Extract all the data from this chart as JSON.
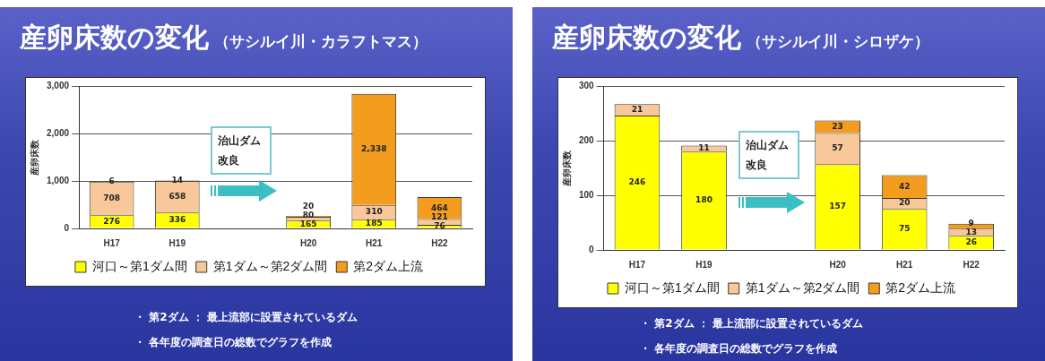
{
  "chart_data": [
    {
      "type": "bar",
      "title": "産卵床数の変化",
      "subtitle": "（サシルイ川・カラフトマス）",
      "ylabel": "産卵床数",
      "categories": [
        "H17",
        "H19",
        null,
        "H20",
        "H21",
        "H22"
      ],
      "stacked": true,
      "series": [
        {
          "name": "河口～第1ダム間",
          "color": "#ffff00",
          "values": [
            276,
            336,
            null,
            165,
            185,
            76
          ],
          "value_labels": [
            "276",
            "336",
            null,
            "165",
            "185",
            "76"
          ]
        },
        {
          "name": "第1ダム～第2ダム間",
          "color": "#f8c79a",
          "values": [
            708,
            658,
            null,
            80,
            310,
            121
          ],
          "value_labels": [
            "708",
            "658",
            null,
            "80",
            "310",
            "121"
          ]
        },
        {
          "name": "第2ダム上流",
          "color": "#f39c1e",
          "values": [
            6,
            14,
            null,
            20,
            2338,
            464
          ],
          "value_labels": [
            "6",
            "14",
            null,
            "20",
            "2,338",
            "464"
          ]
        }
      ],
      "ylim": [
        0,
        3000
      ],
      "yticks": [
        0,
        {
          "value": 1000,
          "label": "1,000"
        },
        {
          "value": 2000,
          "label": "2,000"
        },
        {
          "value": 3000,
          "label": "3,000"
        }
      ],
      "grid": "y",
      "legend": "bottom",
      "annotations": [
        "治山ダム改良",
        "・ 第2ダム ： 最上流部に設置されているダム",
        "・ 各年度の調査日の総数でグラフを作成"
      ]
    },
    {
      "type": "bar",
      "title": "産卵床数の変化",
      "subtitle": "（サシルイ川・シロザケ）",
      "ylabel": "産卵床数",
      "categories": [
        "H17",
        "H19",
        null,
        "H20",
        "H21",
        "H22"
      ],
      "stacked": true,
      "series": [
        {
          "name": "河口～第1ダム間",
          "color": "#ffff00",
          "values": [
            246,
            180,
            null,
            157,
            75,
            26
          ],
          "value_labels": [
            "246",
            "180",
            null,
            "157",
            "75",
            "26"
          ]
        },
        {
          "name": "第1ダム～第2ダム間",
          "color": "#f8c79a",
          "values": [
            21,
            11,
            null,
            57,
            20,
            13
          ],
          "value_labels": [
            "21",
            "11",
            null,
            "57",
            "20",
            "13"
          ]
        },
        {
          "name": "第2ダム上流",
          "color": "#f39c1e",
          "values": [
            null,
            null,
            null,
            23,
            42,
            9
          ],
          "value_labels": [
            null,
            null,
            null,
            "23",
            "42",
            "9"
          ]
        }
      ],
      "ylim": [
        0,
        300
      ],
      "yticks": [
        0,
        100,
        200,
        300
      ],
      "grid": "y",
      "legend": "bottom",
      "annotations": [
        "治山ダム改良",
        "・ 第2ダム ： 最上流部に設置されているダム",
        "・ 各年度の調査日の総数でグラフを作成"
      ]
    }
  ]
}
